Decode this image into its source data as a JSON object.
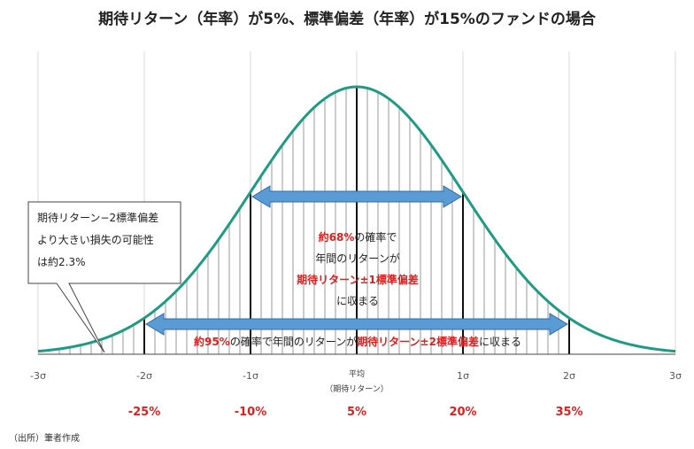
{
  "chart_data": {
    "type": "area",
    "title": "期待リターン（年率）が5%、標準偏差（年率）が15%のファンドの場合",
    "distribution": "normal",
    "mean_return_pct": 5,
    "stdev_pct": 15,
    "xlim": [
      -3,
      3
    ],
    "x_ticks": [
      {
        "x": -3,
        "label": "-3σ"
      },
      {
        "x": -2,
        "label": "-2σ"
      },
      {
        "x": -1,
        "label": "-1σ"
      },
      {
        "x": 0,
        "label": "平均",
        "sublabel": "（期待リターン）"
      },
      {
        "x": 1,
        "label": "1σ"
      },
      {
        "x": 2,
        "label": "2σ"
      },
      {
        "x": 3,
        "label": "3σ"
      }
    ],
    "returns": [
      {
        "x": -2,
        "label": "-25%"
      },
      {
        "x": -1,
        "label": "-10%"
      },
      {
        "x": 0,
        "label": "5%"
      },
      {
        "x": 1,
        "label": "20%"
      },
      {
        "x": 2,
        "label": "35%"
      }
    ],
    "bands": [
      {
        "from": -1,
        "to": 1,
        "probability_pct": 68
      },
      {
        "from": -2,
        "to": 2,
        "probability_pct": 95
      }
    ],
    "tail": {
      "below": -2,
      "probability_pct": 2.3
    },
    "grid": true,
    "colors": {
      "curve": "#1f9b84",
      "arrow": "#5b9bd5",
      "arrow_edge": "#2e6ca8",
      "highlight": "#e02020"
    },
    "annotations": {
      "band68": {
        "l1_red": "約68%",
        "l1_rest": "の確率で",
        "l2": "年間のリターンが",
        "l3_red": "期待リターン±1標準偏差",
        "l4": "に収まる"
      },
      "band95": {
        "red1": "約95%",
        "mid": "の確率で年間のリターンが",
        "red2": "期待リターン±2標準偏差",
        "tail": "に収まる"
      },
      "tail_note": [
        "期待リターン−2標準偏差",
        "より大きい損失の可能性",
        "は約2.3%"
      ]
    },
    "source": "（出所）筆者作成"
  }
}
